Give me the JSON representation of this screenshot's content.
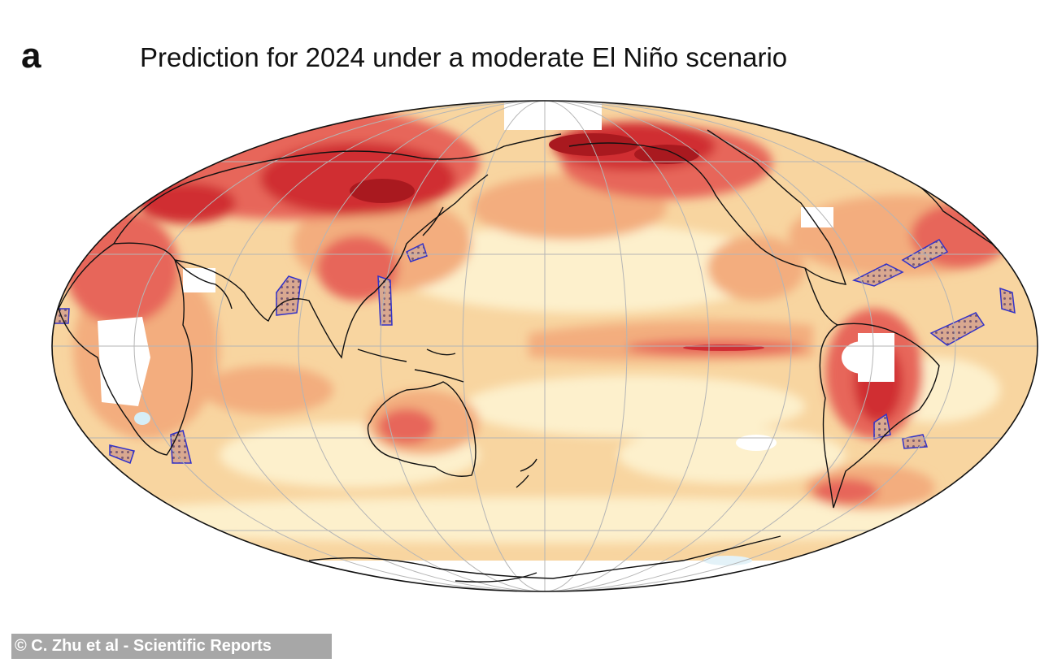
{
  "figure": {
    "panel_label": "a",
    "title": "Prediction for 2024 under a moderate El Niño scenario"
  },
  "map": {
    "projection": "Mollweide",
    "central_longitude": "180",
    "variable": "surface temperature anomaly (warming)",
    "colors": {
      "white": "#ffffff",
      "pale": "#fdf0cc",
      "light": "#f8d5a0",
      "orange": "#f3ad7e",
      "red": "#e7665a",
      "deep_red": "#d02e33",
      "darkest": "#a9191f",
      "cold_spot": "#d6eef7",
      "hatch": "#3232c8"
    },
    "features": [
      "coastlines",
      "graticule",
      "stippled hatching (significance)"
    ]
  },
  "credit": {
    "text": "© C. Zhu et al - Scientific Reports"
  }
}
